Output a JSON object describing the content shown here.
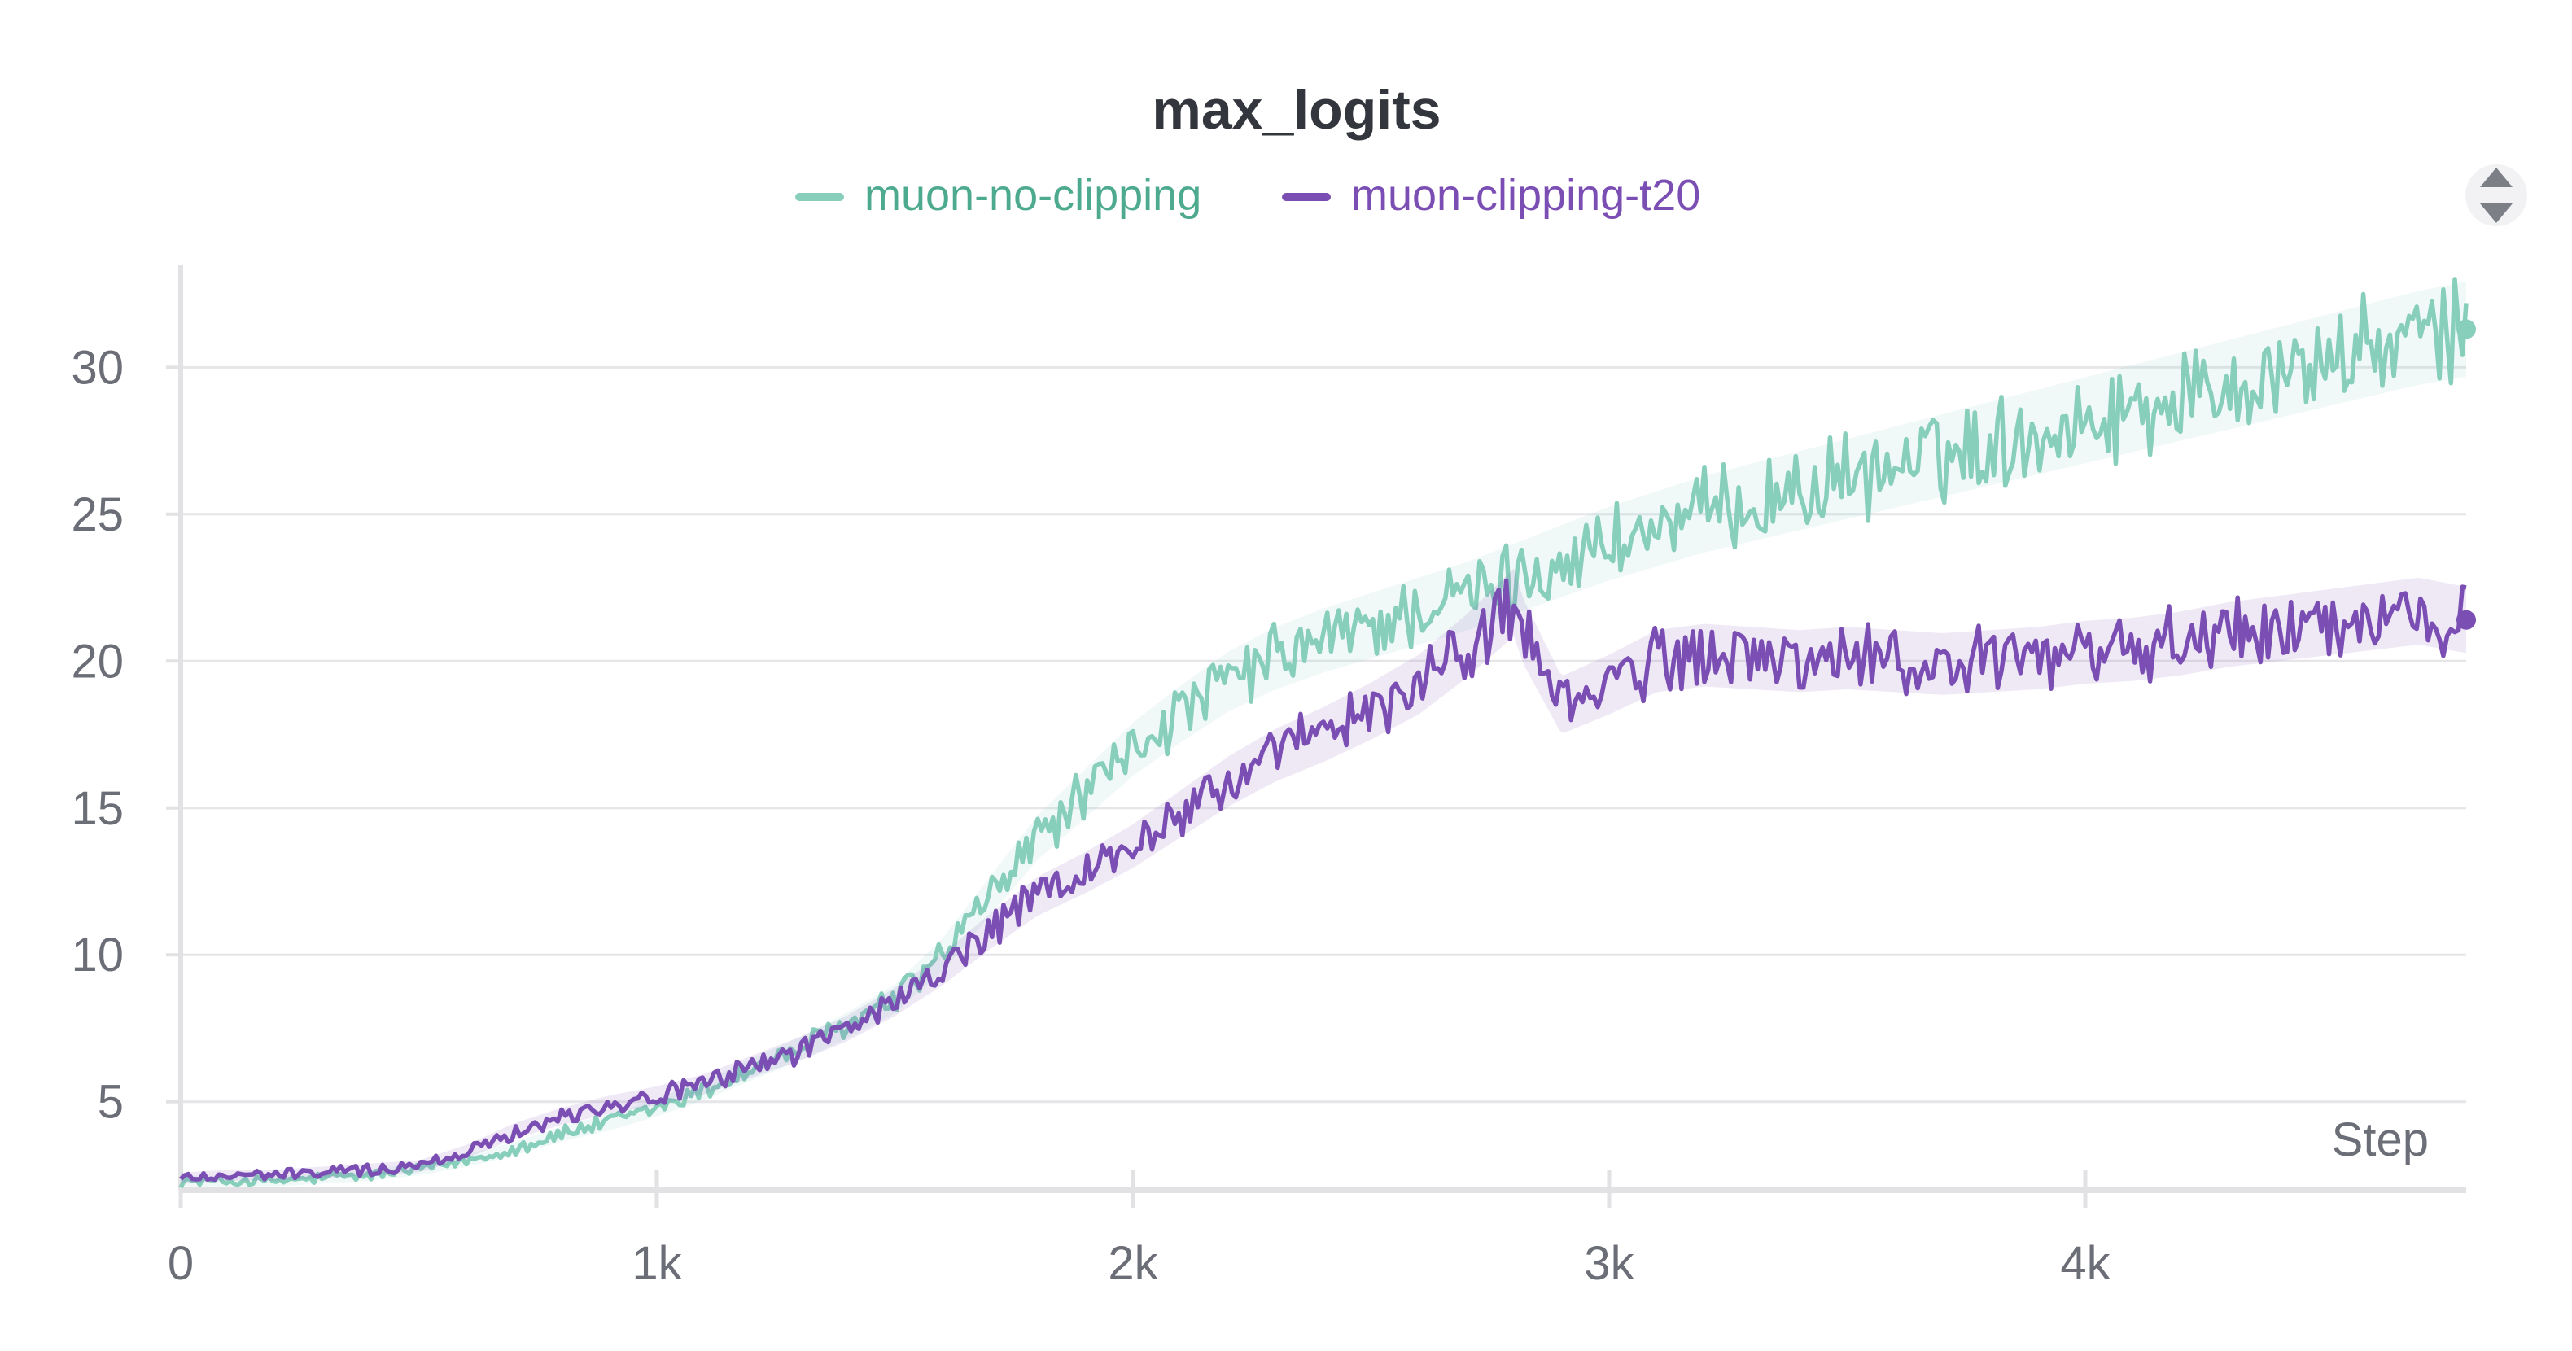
{
  "chart_data": {
    "type": "line",
    "title": "max_logits",
    "xlabel": "Step",
    "ylabel": "",
    "xlim": [
      0,
      4800
    ],
    "ylim": [
      2,
      33.5
    ],
    "x_ticks": [
      0,
      1000,
      2000,
      3000,
      4000
    ],
    "x_tick_labels": [
      "0",
      "1k",
      "2k",
      "3k",
      "4k"
    ],
    "y_ticks": [
      5,
      10,
      15,
      20,
      25,
      30
    ],
    "y_tick_labels": [
      "5",
      "10",
      "15",
      "20",
      "25",
      "30"
    ],
    "grid": true,
    "legend_position": "top-center",
    "series": [
      {
        "name": "muon-no-clipping",
        "color": "#87cebb",
        "x": [
          0,
          100,
          200,
          300,
          400,
          500,
          600,
          700,
          800,
          900,
          1000,
          1100,
          1200,
          1300,
          1400,
          1500,
          1600,
          1700,
          1800,
          1900,
          2000,
          2100,
          2200,
          2300,
          2400,
          2500,
          2600,
          2700,
          2800,
          2900,
          3000,
          3100,
          3200,
          3300,
          3400,
          3500,
          3600,
          3700,
          3800,
          3900,
          4000,
          4100,
          4200,
          4300,
          4400,
          4500,
          4600,
          4700,
          4800
        ],
        "y": [
          2.3,
          2.3,
          2.3,
          2.4,
          2.5,
          2.7,
          3.0,
          3.4,
          3.9,
          4.3,
          4.8,
          5.4,
          6.1,
          6.8,
          7.6,
          8.5,
          10.0,
          12.0,
          14.0,
          15.5,
          17.0,
          18.2,
          19.3,
          20.1,
          20.7,
          21.2,
          21.7,
          22.2,
          22.8,
          23.4,
          24.0,
          24.5,
          25.0,
          25.4,
          25.8,
          26.2,
          26.6,
          27.0,
          27.4,
          27.8,
          28.2,
          28.6,
          29.0,
          29.4,
          29.8,
          30.2,
          30.6,
          31.0,
          31.3
        ]
      },
      {
        "name": "muon-clipping-t20",
        "color": "#7b4eb4",
        "x": [
          0,
          100,
          200,
          300,
          400,
          500,
          600,
          700,
          800,
          900,
          1000,
          1100,
          1200,
          1300,
          1400,
          1500,
          1600,
          1700,
          1800,
          1900,
          2000,
          2100,
          2200,
          2300,
          2400,
          2500,
          2600,
          2700,
          2800,
          2820,
          2900,
          3000,
          3100,
          3200,
          3300,
          3400,
          3500,
          3600,
          3700,
          3800,
          3900,
          4000,
          4100,
          4200,
          4300,
          4400,
          4500,
          4600,
          4700,
          4800
        ],
        "y": [
          2.4,
          2.5,
          2.5,
          2.6,
          2.7,
          2.8,
          3.3,
          4.0,
          4.5,
          4.9,
          5.2,
          5.6,
          6.2,
          6.8,
          7.5,
          8.4,
          9.5,
          10.8,
          12.0,
          12.8,
          13.7,
          14.8,
          15.9,
          16.8,
          17.5,
          18.3,
          19.2,
          20.5,
          22.0,
          21.0,
          18.5,
          19.2,
          20.0,
          20.2,
          20.1,
          20.0,
          20.1,
          20.0,
          19.9,
          20.0,
          20.1,
          20.3,
          20.4,
          20.6,
          20.9,
          21.1,
          21.3,
          21.5,
          21.7,
          21.4
        ]
      }
    ]
  }
}
